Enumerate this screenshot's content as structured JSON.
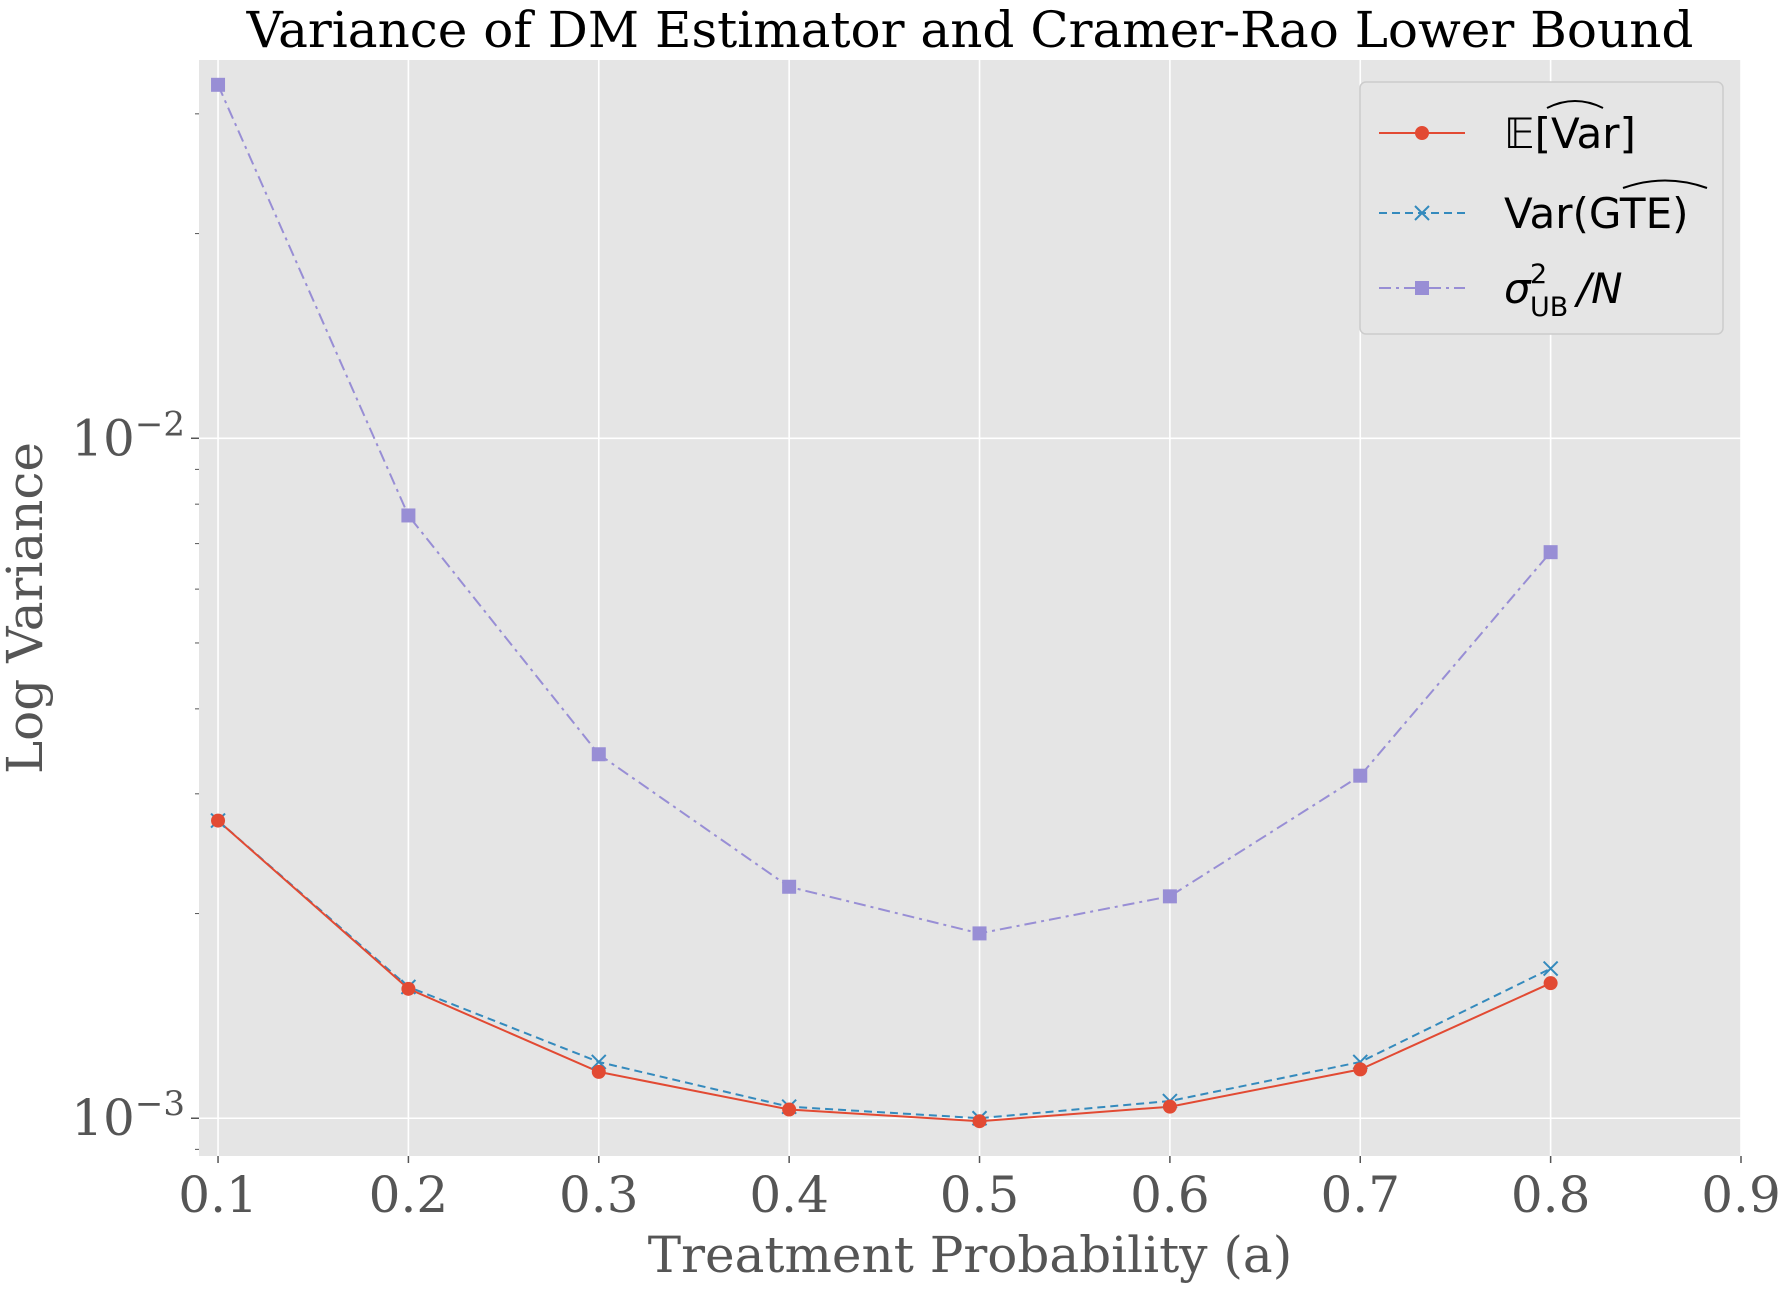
{
  "chart_data": {
    "type": "line",
    "title": "Variance of DM Estimator and Cramer-Rao Lower Bound",
    "xlabel": "Treatment Probability (a)",
    "ylabel": "Log Variance",
    "yscale": "log",
    "xlim": [
      0.09,
      0.9
    ],
    "ylim": [
      0.00088,
      0.036
    ],
    "grid": true,
    "legend_position": "top-right",
    "x_ticks": [
      "0.1",
      "0.2",
      "0.3",
      "0.4",
      "0.5",
      "0.6",
      "0.7",
      "0.8",
      "0.9"
    ],
    "y_ticks": [
      {
        "value": 0.01,
        "base": "10",
        "exponent": "−2"
      },
      {
        "value": 0.001,
        "base": "10",
        "exponent": "−3"
      }
    ],
    "x": [
      0.1,
      0.2,
      0.3,
      0.4,
      0.5,
      0.6,
      0.7,
      0.8
    ],
    "series": [
      {
        "name": "E[Var-hat]",
        "legend_main": "𝔼[Var]",
        "color": "#e24a33",
        "marker": "circle",
        "linestyle": "solid",
        "values": [
          0.00274,
          0.00155,
          0.00117,
          0.00103,
          0.00099,
          0.00104,
          0.00118,
          0.00158
        ]
      },
      {
        "name": "Var(GTE-hat)",
        "legend_main": "Var(GTE)",
        "color": "#348abd",
        "marker": "x",
        "linestyle": "dashed",
        "values": [
          0.00274,
          0.00156,
          0.00121,
          0.00104,
          0.001,
          0.00106,
          0.00121,
          0.00166
        ]
      },
      {
        "name": "sigma_UB^2 / N",
        "legend_main": "σ",
        "legend_sup": "2",
        "legend_sub": "UB",
        "legend_tail": "/N",
        "color": "#988ed5",
        "marker": "square",
        "linestyle": "dashdot",
        "values": [
          0.0331,
          0.0077,
          0.00343,
          0.00219,
          0.00187,
          0.00212,
          0.00319,
          0.0068
        ]
      }
    ]
  }
}
